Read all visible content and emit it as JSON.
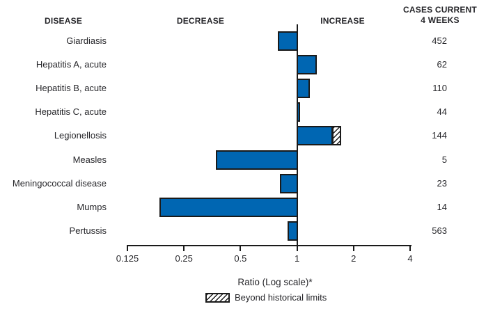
{
  "headers": {
    "disease": "DISEASE",
    "decrease": "DECREASE",
    "increase": "INCREASE",
    "cases_line1": "CASES CURRENT",
    "cases_line2": "4 WEEKS"
  },
  "chart_data": {
    "type": "bar",
    "orientation": "horizontal",
    "scale": "log2",
    "x_range": [
      0.125,
      4
    ],
    "x_ticks": [
      0.125,
      0.25,
      0.5,
      1,
      2,
      4
    ],
    "baseline": 1,
    "xlabel": "Ratio (Log scale)*",
    "legend": "Beyond historical limits",
    "rows": [
      {
        "disease": "Giardiasis",
        "ratio": 0.79,
        "cases": 452
      },
      {
        "disease": "Hepatitis A, acute",
        "ratio": 1.27,
        "cases": 62
      },
      {
        "disease": "Hepatitis B, acute",
        "ratio": 1.17,
        "cases": 110
      },
      {
        "disease": "Hepatitis C, acute",
        "ratio": 1.04,
        "cases": 44
      },
      {
        "disease": "Legionellosis",
        "ratio": 1.55,
        "beyond_to": 1.72,
        "cases": 144
      },
      {
        "disease": "Measles",
        "ratio": 0.37,
        "cases": 5
      },
      {
        "disease": "Meningococcal disease",
        "ratio": 0.81,
        "cases": 23
      },
      {
        "disease": "Mumps",
        "ratio": 0.185,
        "cases": 14
      },
      {
        "disease": "Pertussis",
        "ratio": 0.89,
        "cases": 563
      }
    ]
  },
  "colors": {
    "bar_fill": "#0066b2",
    "bar_border": "#1a1a1a",
    "text": "#26262a"
  }
}
